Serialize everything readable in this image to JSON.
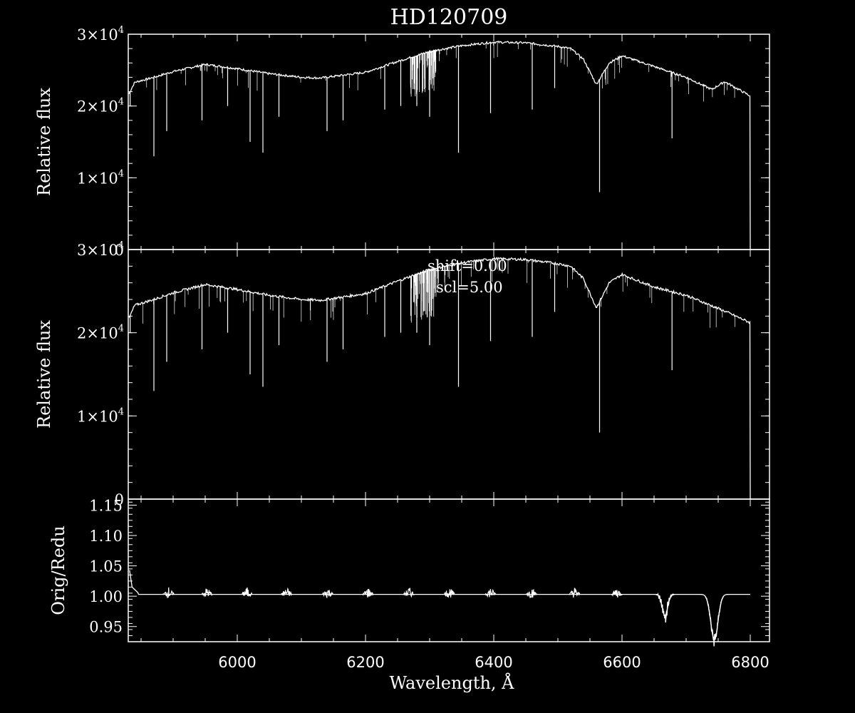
{
  "colors": {
    "background": "#000000",
    "foreground": "#ffffff"
  },
  "chart_data": [
    {
      "type": "line",
      "title": "HD120709",
      "ylabel": "Relative flux",
      "xlim": [
        5830,
        6830
      ],
      "ylim": [
        0,
        30000
      ],
      "yticks": [
        0,
        10000,
        20000,
        30000
      ],
      "ytick_labels": [
        {
          "mantissa": "0",
          "exp": ""
        },
        {
          "mantissa": "1×10",
          "exp": "4"
        },
        {
          "mantissa": "2×10",
          "exp": "4"
        },
        {
          "mantissa": "3×10",
          "exp": "4"
        }
      ],
      "series": [
        {
          "continuum_x": [
            5830,
            5840,
            5870,
            5900,
            5950,
            6000,
            6050,
            6100,
            6130,
            6200,
            6250,
            6300,
            6350,
            6400,
            6450,
            6500,
            6520,
            6540,
            6560,
            6580,
            6600,
            6650,
            6700,
            6740,
            6760,
            6800
          ],
          "continuum_y": [
            21500,
            23300,
            24000,
            24800,
            25800,
            25200,
            24500,
            24000,
            23900,
            24700,
            26200,
            27600,
            28400,
            28900,
            28800,
            28300,
            28000,
            26500,
            23000,
            26000,
            27000,
            25500,
            24000,
            22300,
            23400,
            21400
          ],
          "absorption_lines": [
            {
              "x": 5833,
              "y": 20000
            },
            {
              "x": 5870,
              "y": 13000
            },
            {
              "x": 5890,
              "y": 16500
            },
            {
              "x": 5945,
              "y": 18000
            },
            {
              "x": 5985,
              "y": 20000
            },
            {
              "x": 6020,
              "y": 15000
            },
            {
              "x": 6040,
              "y": 13500
            },
            {
              "x": 6065,
              "y": 18500
            },
            {
              "x": 6140,
              "y": 16500
            },
            {
              "x": 6165,
              "y": 18000
            },
            {
              "x": 6230,
              "y": 19500
            },
            {
              "x": 6255,
              "y": 20000
            },
            {
              "x": 6280,
              "y": 20000
            },
            {
              "x": 6300,
              "y": 18500
            },
            {
              "x": 6345,
              "y": 13500
            },
            {
              "x": 6395,
              "y": 19000
            },
            {
              "x": 6460,
              "y": 19500
            },
            {
              "x": 6495,
              "y": 22500
            },
            {
              "x": 6565,
              "y": 8000
            },
            {
              "x": 6678,
              "y": 15500
            }
          ],
          "noise_amp": 300
        }
      ]
    },
    {
      "type": "line",
      "ylabel": "Relative flux",
      "xlim": [
        5830,
        6830
      ],
      "ylim": [
        0,
        30000
      ],
      "yticks": [
        0,
        10000,
        20000,
        30000
      ],
      "ytick_labels": [
        {
          "mantissa": "0",
          "exp": ""
        },
        {
          "mantissa": "1×10",
          "exp": "4"
        },
        {
          "mantissa": "2×10",
          "exp": "4"
        },
        {
          "mantissa": "3×10",
          "exp": "4"
        }
      ],
      "annotations": [
        "shift=0.00",
        "scl=5.00"
      ],
      "series": [
        {
          "continuum_x": [
            5830,
            5840,
            5870,
            5900,
            5950,
            6000,
            6050,
            6100,
            6130,
            6200,
            6250,
            6300,
            6350,
            6400,
            6450,
            6500,
            6520,
            6540,
            6560,
            6580,
            6600,
            6650,
            6700,
            6760,
            6800
          ],
          "continuum_y": [
            21500,
            23300,
            24000,
            24800,
            25800,
            25200,
            24500,
            24000,
            23900,
            24700,
            26200,
            27600,
            28400,
            28900,
            28800,
            28300,
            28000,
            26500,
            23000,
            26000,
            27000,
            25500,
            24500,
            22600,
            21200
          ],
          "absorption_lines": [
            {
              "x": 5833,
              "y": 20000
            },
            {
              "x": 5870,
              "y": 13000
            },
            {
              "x": 5890,
              "y": 16500
            },
            {
              "x": 5945,
              "y": 18000
            },
            {
              "x": 5985,
              "y": 20000
            },
            {
              "x": 6020,
              "y": 15000
            },
            {
              "x": 6040,
              "y": 13500
            },
            {
              "x": 6065,
              "y": 18500
            },
            {
              "x": 6140,
              "y": 16500
            },
            {
              "x": 6165,
              "y": 18000
            },
            {
              "x": 6230,
              "y": 19500
            },
            {
              "x": 6255,
              "y": 20000
            },
            {
              "x": 6280,
              "y": 20000
            },
            {
              "x": 6300,
              "y": 18500
            },
            {
              "x": 6345,
              "y": 13500
            },
            {
              "x": 6395,
              "y": 19000
            },
            {
              "x": 6460,
              "y": 19500
            },
            {
              "x": 6495,
              "y": 22500
            },
            {
              "x": 6565,
              "y": 8000
            },
            {
              "x": 6678,
              "y": 15500
            }
          ],
          "noise_amp": 300
        }
      ]
    },
    {
      "type": "line",
      "ylabel": "Orig/Redu",
      "xlabel": "Wavelength, Å",
      "xlim": [
        5830,
        6830
      ],
      "ylim": [
        0.925,
        1.16
      ],
      "xticks": [
        6000,
        6200,
        6400,
        6600,
        6800
      ],
      "xtick_labels": [
        "6000",
        "6200",
        "6400",
        "6600",
        "6800"
      ],
      "yticks": [
        0.95,
        1.0,
        1.05,
        1.1,
        1.15
      ],
      "ytick_labels": [
        "0.95",
        "1.00",
        "1.05",
        "1.10",
        "1.15"
      ],
      "series": [
        {
          "baseline": 1.003,
          "start": [
            {
              "x": 5832,
              "y": 1.043
            },
            {
              "x": 5836,
              "y": 1.015
            },
            {
              "x": 5845,
              "y": 1.006
            }
          ],
          "ripple_centers": [
            5893,
            5953,
            6015,
            6077,
            6141,
            6204,
            6268,
            6331,
            6395,
            6459,
            6526,
            6592
          ],
          "ripple_amp": 0.012,
          "dips": [
            {
              "x": 6667,
              "min": 0.968,
              "max": 1.017
            },
            {
              "x": 6744,
              "min": 0.928,
              "max": 1.007
            }
          ],
          "xend": 6800
        }
      ]
    }
  ]
}
